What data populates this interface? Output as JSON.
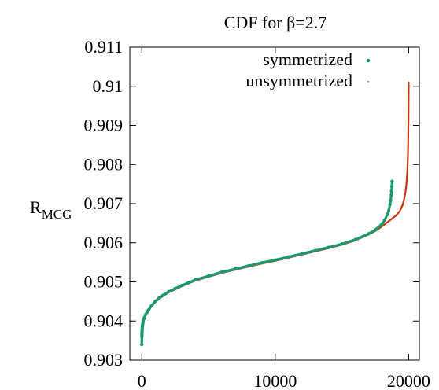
{
  "chart_data": {
    "type": "scatter",
    "title": "CDF for β=2.7",
    "xlabel": "",
    "ylabel": "R",
    "ylabel_sub": "MCG",
    "xlim": [
      -900,
      20800
    ],
    "ylim": [
      0.903,
      0.911
    ],
    "xticks": [
      0,
      10000,
      20000
    ],
    "xtick_labels": [
      "0",
      "10000",
      "20000"
    ],
    "yticks": [
      0.903,
      0.904,
      0.905,
      0.906,
      0.907,
      0.908,
      0.909,
      0.91,
      0.911
    ],
    "ytick_labels": [
      "0.903",
      "0.904",
      "0.905",
      "0.906",
      "0.907",
      "0.908",
      "0.909",
      "0.91",
      "0.911"
    ],
    "grid": false,
    "legend_position": "top-right",
    "series": [
      {
        "name": "symmetrized",
        "color": "#1a9a6c",
        "marker": "dot",
        "x": [
          0,
          5,
          10,
          15,
          20,
          30,
          40,
          60,
          80,
          100,
          150,
          200,
          300,
          400,
          500,
          700,
          1000,
          1300,
          1600,
          2000,
          2500,
          3000,
          3500,
          4000,
          5000,
          6000,
          7000,
          8000,
          9000,
          10000,
          11000,
          12000,
          13000,
          14000,
          15000,
          16000,
          17000,
          17500,
          18000,
          18200,
          18400,
          18500,
          18600,
          18650,
          18700,
          18720,
          18740,
          18760
        ],
        "y": [
          0.9034,
          0.9036,
          0.90365,
          0.9037,
          0.90375,
          0.9038,
          0.90385,
          0.9039,
          0.90395,
          0.904,
          0.90405,
          0.9041,
          0.90417,
          0.90423,
          0.90428,
          0.90438,
          0.9045,
          0.90459,
          0.90466,
          0.90475,
          0.90483,
          0.90491,
          0.90498,
          0.90505,
          0.90515,
          0.90525,
          0.90533,
          0.90541,
          0.90549,
          0.90556,
          0.90564,
          0.90572,
          0.9058,
          0.90588,
          0.90597,
          0.90608,
          0.90623,
          0.90633,
          0.90648,
          0.90658,
          0.90672,
          0.90682,
          0.90698,
          0.90708,
          0.90722,
          0.90732,
          0.90744,
          0.90757
        ]
      },
      {
        "name": "unsymmetrized",
        "color": "#cc3311",
        "marker": "dot",
        "x": [
          0,
          10,
          20,
          40,
          60,
          100,
          150,
          200,
          300,
          400,
          500,
          700,
          1000,
          1300,
          1600,
          2000,
          2500,
          3000,
          3500,
          4000,
          5000,
          6000,
          7000,
          8000,
          9000,
          10000,
          11000,
          12000,
          13000,
          14000,
          15000,
          16000,
          17000,
          17500,
          18000,
          18500,
          18800,
          19000,
          19200,
          19400,
          19550,
          19650,
          19750,
          19800,
          19850,
          19880,
          19900,
          19920,
          19940,
          19950,
          19960,
          19970,
          19980,
          19990,
          20000
        ],
        "y": [
          0.9037,
          0.90375,
          0.9038,
          0.90385,
          0.9039,
          0.90397,
          0.90403,
          0.90408,
          0.90415,
          0.90421,
          0.90426,
          0.90436,
          0.90448,
          0.90457,
          0.90464,
          0.90473,
          0.90481,
          0.90489,
          0.90496,
          0.90503,
          0.90513,
          0.90523,
          0.90531,
          0.90539,
          0.90547,
          0.90554,
          0.90562,
          0.9057,
          0.90578,
          0.90586,
          0.90595,
          0.90606,
          0.90621,
          0.9063,
          0.90642,
          0.90655,
          0.90663,
          0.90668,
          0.90675,
          0.90685,
          0.90697,
          0.9071,
          0.90728,
          0.9074,
          0.90758,
          0.90773,
          0.90785,
          0.908,
          0.9082,
          0.90835,
          0.9085,
          0.90875,
          0.9091,
          0.9095,
          0.9101
        ]
      }
    ]
  }
}
